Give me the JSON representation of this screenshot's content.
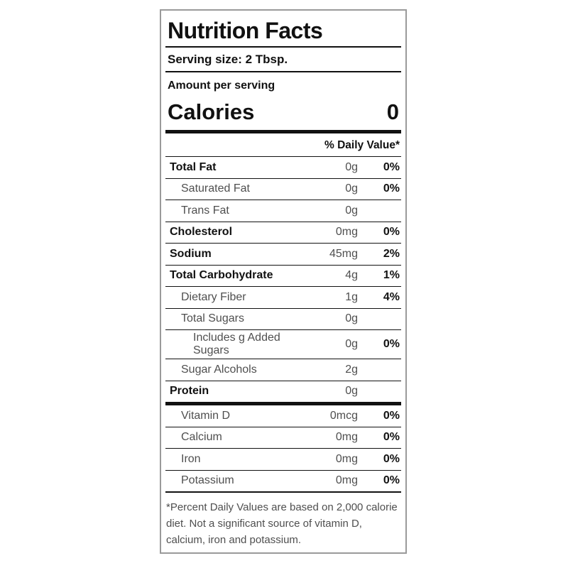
{
  "label": {
    "title": "Nutrition Facts",
    "serving_size": "Serving size: 2 Tbsp.",
    "amount_per_serving": "Amount per serving",
    "calories_label": "Calories",
    "calories_value": "0",
    "daily_value_header": "% Daily Value*",
    "rows": [
      {
        "name": "Total Fat",
        "amount": "0g",
        "percent": "0%",
        "style": "bold",
        "indent": 0
      },
      {
        "name": "Saturated Fat",
        "amount": "0g",
        "percent": "0%",
        "style": "light",
        "indent": 1
      },
      {
        "name": "Trans Fat",
        "amount": "0g",
        "percent": "",
        "style": "light",
        "indent": 1
      },
      {
        "name": "Cholesterol",
        "amount": "0mg",
        "percent": "0%",
        "style": "bold",
        "indent": 0
      },
      {
        "name": "Sodium",
        "amount": "45mg",
        "percent": "2%",
        "style": "bold",
        "indent": 0
      },
      {
        "name": "Total Carbohydrate",
        "amount": "4g",
        "percent": "1%",
        "style": "bold",
        "indent": 0
      },
      {
        "name": "Dietary Fiber",
        "amount": "1g",
        "percent": "4%",
        "style": "light",
        "indent": 1
      },
      {
        "name": "Total Sugars",
        "amount": "0g",
        "percent": "",
        "style": "light",
        "indent": 1
      },
      {
        "name": "Includes g Added Sugars",
        "amount": "0g",
        "percent": "0%",
        "style": "light",
        "indent": 2
      },
      {
        "name": "Sugar Alcohols",
        "amount": "2g",
        "percent": "",
        "style": "light",
        "indent": 1
      },
      {
        "name": "Protein",
        "amount": "0g",
        "percent": "",
        "style": "bold",
        "indent": 0
      }
    ],
    "vitamins": [
      {
        "name": "Vitamin D",
        "amount": "0mcg",
        "percent": "0%",
        "style": "light",
        "indent": 1
      },
      {
        "name": "Calcium",
        "amount": "0mg",
        "percent": "0%",
        "style": "light",
        "indent": 1
      },
      {
        "name": "Iron",
        "amount": "0mg",
        "percent": "0%",
        "style": "light",
        "indent": 1
      },
      {
        "name": "Potassium",
        "amount": "0mg",
        "percent": "0%",
        "style": "light",
        "indent": 1
      }
    ],
    "footnote": "*Percent Daily Values are based on 2,000 calorie diet. Not a significant source of vitamin D, calcium, iron and potassium."
  },
  "colors": {
    "text_black": "#111111",
    "text_gray": "#4f4f4f",
    "border_gray": "#9a9a9a"
  }
}
